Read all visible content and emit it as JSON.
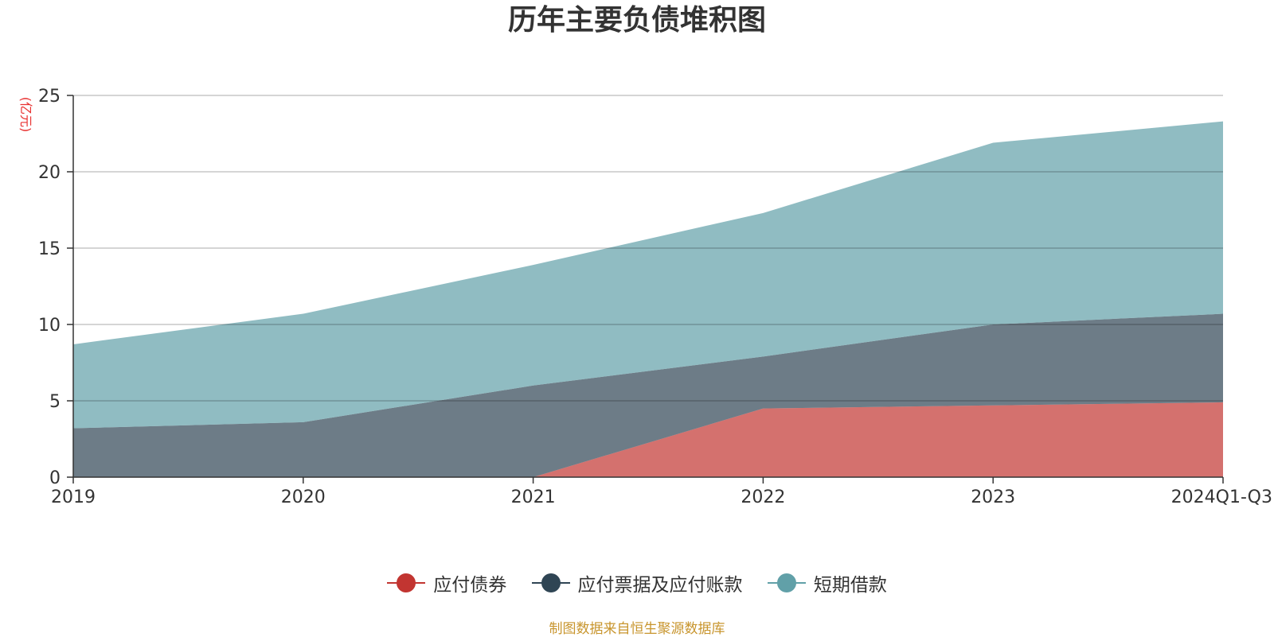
{
  "title": "历年主要负债堆积图",
  "unit_label": "(亿元)",
  "source_note": "制图数据来自恒生聚源数据库",
  "chart_data": {
    "type": "area",
    "stacked": true,
    "categories": [
      "2019",
      "2020",
      "2021",
      "2022",
      "2023",
      "2024Q1-Q3"
    ],
    "ylim": [
      0,
      25
    ],
    "yticks": [
      0,
      5,
      10,
      15,
      20,
      25
    ],
    "grid": true,
    "legend_position": "bottom",
    "series": [
      {
        "name": "应付债券",
        "color": "#c23531",
        "values": [
          0,
          0,
          0,
          4.5,
          4.7,
          4.9
        ]
      },
      {
        "name": "应付票据及应付账款",
        "color": "#2f4554",
        "values": [
          3.2,
          3.6,
          6.0,
          3.4,
          5.3,
          5.8
        ]
      },
      {
        "name": "短期借款",
        "color": "#61a0a8",
        "values": [
          5.5,
          7.1,
          7.9,
          9.4,
          11.9,
          12.6
        ]
      }
    ]
  }
}
